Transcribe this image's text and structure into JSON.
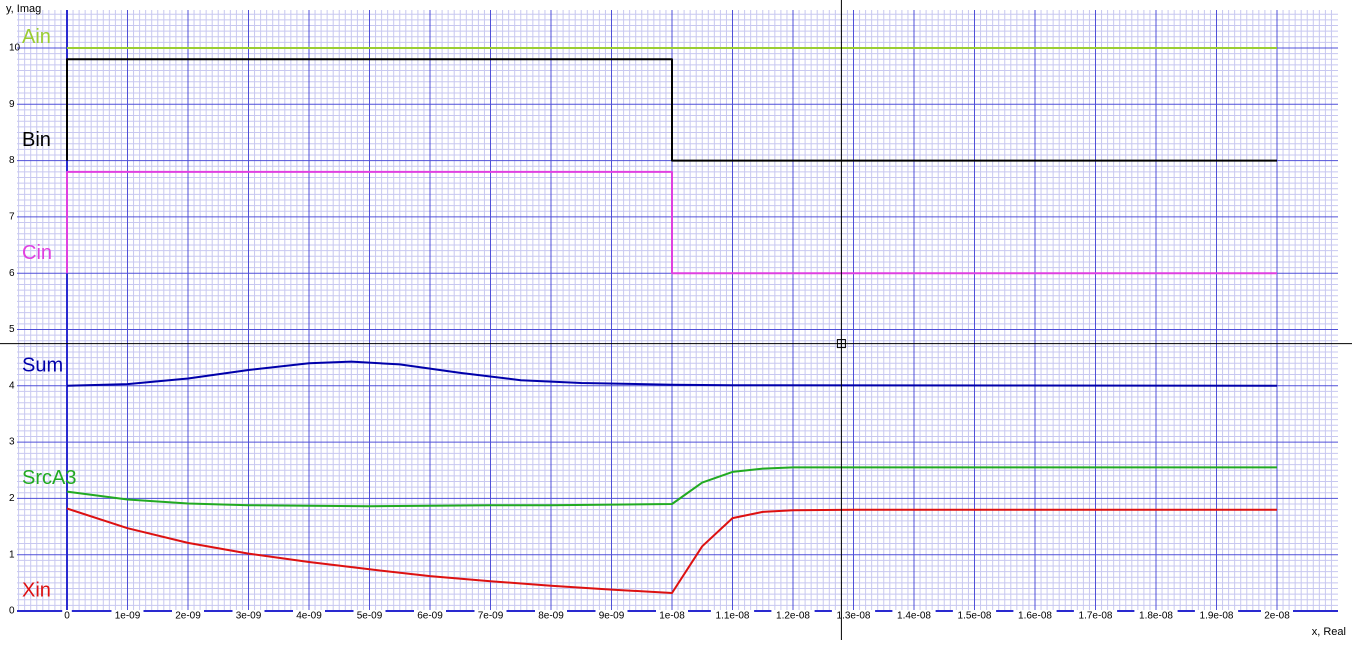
{
  "chart_data": {
    "type": "line",
    "title": "",
    "ylabel": "y, Imag",
    "xlabel": "x, Real",
    "xlim": [
      -1e-10,
      2.1e-08
    ],
    "ylim": [
      0,
      10.6
    ],
    "grid": true,
    "x_ticks": [
      {
        "v": 0,
        "label": "0"
      },
      {
        "v": 1e-09,
        "label": "1e-09"
      },
      {
        "v": 2e-09,
        "label": "2e-09"
      },
      {
        "v": 3e-09,
        "label": "3e-09"
      },
      {
        "v": 4e-09,
        "label": "4e-09"
      },
      {
        "v": 5e-09,
        "label": "5e-09"
      },
      {
        "v": 6e-09,
        "label": "6e-09"
      },
      {
        "v": 7e-09,
        "label": "7e-09"
      },
      {
        "v": 8e-09,
        "label": "8e-09"
      },
      {
        "v": 9e-09,
        "label": "9e-09"
      },
      {
        "v": 1e-08,
        "label": "1e-08"
      },
      {
        "v": 1.1e-08,
        "label": "1.1e-08"
      },
      {
        "v": 1.2e-08,
        "label": "1.2e-08"
      },
      {
        "v": 1.3e-08,
        "label": "1.3e-08"
      },
      {
        "v": 1.4e-08,
        "label": "1.4e-08"
      },
      {
        "v": 1.5e-08,
        "label": "1.5e-08"
      },
      {
        "v": 1.6e-08,
        "label": "1.6e-08"
      },
      {
        "v": 1.7e-08,
        "label": "1.7e-08"
      },
      {
        "v": 1.8e-08,
        "label": "1.8e-08"
      },
      {
        "v": 1.9e-08,
        "label": "1.9e-08"
      },
      {
        "v": 2e-08,
        "label": "2e-08"
      }
    ],
    "y_ticks": [
      {
        "v": 0,
        "label": "0"
      },
      {
        "v": 1,
        "label": "1"
      },
      {
        "v": 2,
        "label": "2"
      },
      {
        "v": 3,
        "label": "3"
      },
      {
        "v": 4,
        "label": "4"
      },
      {
        "v": 5,
        "label": "5"
      },
      {
        "v": 6,
        "label": "6"
      },
      {
        "v": 7,
        "label": "7"
      },
      {
        "v": 8,
        "label": "8"
      },
      {
        "v": 9,
        "label": "9"
      },
      {
        "v": 10,
        "label": "10"
      }
    ],
    "cursor": {
      "x": 1.28e-08,
      "y": 4.75
    },
    "series": [
      {
        "name": "Ain",
        "color": "#9acd32",
        "label_y": 10.18,
        "x": [
          0,
          2e-08
        ],
        "y": [
          10,
          10
        ]
      },
      {
        "name": "Bin",
        "color": "#000000",
        "label_y": 8.35,
        "x": [
          0,
          0,
          1e-08,
          1e-08,
          2e-08
        ],
        "y": [
          8,
          9.8,
          9.8,
          8,
          8
        ]
      },
      {
        "name": "Cin",
        "color": "#e040e0",
        "label_y": 6.35,
        "x": [
          0,
          0,
          1e-08,
          1e-08,
          2e-08
        ],
        "y": [
          6,
          7.8,
          7.8,
          6,
          6
        ]
      },
      {
        "name": "Sum",
        "color": "#0000aa",
        "label_y": 4.35,
        "x": [
          0,
          1e-09,
          2e-09,
          3e-09,
          4e-09,
          4.7e-09,
          5.5e-09,
          6.5e-09,
          7.5e-09,
          8.5e-09,
          1e-08,
          1.1e-08,
          2e-08
        ],
        "y": [
          4.0,
          4.03,
          4.13,
          4.28,
          4.4,
          4.43,
          4.38,
          4.23,
          4.1,
          4.05,
          4.02,
          4.01,
          4.0
        ]
      },
      {
        "name": "SrcA3",
        "color": "#22aa22",
        "label_y": 2.35,
        "x": [
          0,
          1e-09,
          2e-09,
          3e-09,
          4e-09,
          5e-09,
          6e-09,
          7e-09,
          8e-09,
          9e-09,
          1e-08,
          1.05e-08,
          1.1e-08,
          1.15e-08,
          1.2e-08,
          1.3e-08,
          2e-08
        ],
        "y": [
          2.12,
          1.98,
          1.91,
          1.88,
          1.87,
          1.86,
          1.87,
          1.88,
          1.88,
          1.89,
          1.9,
          2.28,
          2.47,
          2.53,
          2.55,
          2.55,
          2.55
        ]
      },
      {
        "name": "Xin",
        "color": "#dd1111",
        "label_y": 0.35,
        "x": [
          0,
          1e-09,
          2e-09,
          3e-09,
          4e-09,
          5e-09,
          6e-09,
          7e-09,
          8e-09,
          9e-09,
          1e-08,
          1.05e-08,
          1.1e-08,
          1.15e-08,
          1.2e-08,
          1.3e-08,
          2e-08
        ],
        "y": [
          1.82,
          1.47,
          1.21,
          1.02,
          0.87,
          0.74,
          0.62,
          0.53,
          0.45,
          0.38,
          0.32,
          1.15,
          1.65,
          1.76,
          1.79,
          1.8,
          1.8
        ]
      }
    ]
  }
}
